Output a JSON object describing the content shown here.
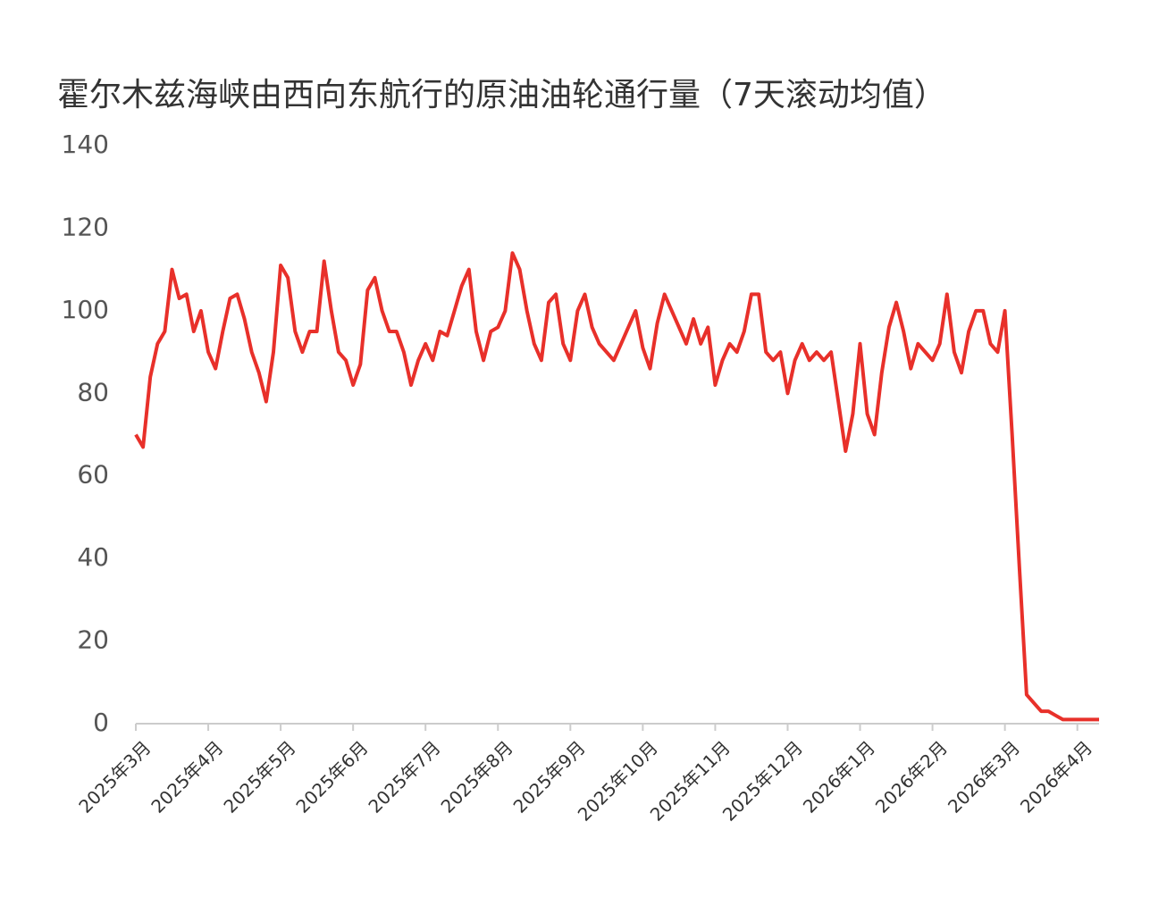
{
  "chart_data": {
    "type": "line",
    "title": "霍尔木兹海峡由西向东航行的原油油轮通行量（7天滚动均值）",
    "categories": [
      "2025年3月",
      null,
      null,
      null,
      null,
      null,
      null,
      null,
      null,
      null,
      "2025年4月",
      null,
      null,
      null,
      null,
      null,
      null,
      null,
      null,
      null,
      "2025年5月",
      null,
      null,
      null,
      null,
      null,
      null,
      null,
      null,
      null,
      "2025年6月",
      null,
      null,
      null,
      null,
      null,
      null,
      null,
      null,
      null,
      "2025年7月",
      null,
      null,
      null,
      null,
      null,
      null,
      null,
      null,
      null,
      "2025年8月",
      null,
      null,
      null,
      null,
      null,
      null,
      null,
      null,
      null,
      "2025年9月",
      null,
      null,
      null,
      null,
      null,
      null,
      null,
      null,
      null,
      "2025年10月",
      null,
      null,
      null,
      null,
      null,
      null,
      null,
      null,
      null,
      "2025年11月",
      null,
      null,
      null,
      null,
      null,
      null,
      null,
      null,
      null,
      "2025年12月",
      null,
      null,
      null,
      null,
      null,
      null,
      null,
      null,
      null,
      "2026年1月",
      null,
      null,
      null,
      null,
      null,
      null,
      null,
      null,
      null,
      "2026年2月",
      null,
      null,
      null,
      null,
      null,
      null,
      null,
      null,
      null,
      "2026年3月",
      null,
      null,
      null,
      null,
      null,
      null,
      null,
      null,
      null,
      "2026年4月",
      null,
      null,
      null
    ],
    "series": [
      {
        "color": "#e8302a",
        "values": [
          70,
          67,
          84,
          92,
          95,
          110,
          103,
          104,
          95,
          100,
          90,
          86,
          95,
          103,
          104,
          98,
          90,
          85,
          78,
          90,
          111,
          108,
          95,
          90,
          95,
          95,
          112,
          100,
          90,
          88,
          82,
          87,
          105,
          108,
          100,
          95,
          95,
          90,
          82,
          88,
          92,
          88,
          95,
          94,
          100,
          106,
          110,
          95,
          88,
          95,
          96,
          100,
          114,
          110,
          100,
          92,
          88,
          102,
          104,
          92,
          88,
          100,
          104,
          96,
          92,
          90,
          88,
          92,
          96,
          100,
          91,
          86,
          97,
          104,
          100,
          96,
          92,
          98,
          92,
          96,
          82,
          88,
          92,
          90,
          95,
          104,
          104,
          90,
          88,
          90,
          80,
          88,
          92,
          88,
          90,
          88,
          90,
          78,
          66,
          75,
          92,
          75,
          70,
          85,
          96,
          102,
          95,
          86,
          92,
          90,
          88,
          92,
          104,
          90,
          85,
          95,
          100,
          100,
          92,
          90,
          100,
          70,
          38,
          7,
          5,
          3,
          3,
          2,
          1,
          1,
          1,
          1,
          1,
          1
        ]
      }
    ],
    "ylim": [
      0,
      140
    ],
    "yticks": [
      0,
      20,
      40,
      60,
      80,
      100,
      120,
      140
    ],
    "grid": false
  }
}
